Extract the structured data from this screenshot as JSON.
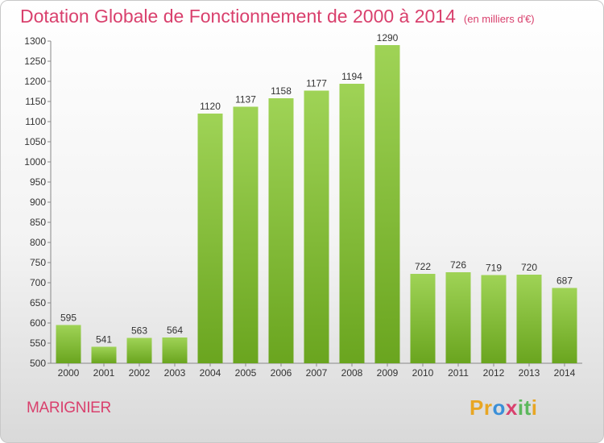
{
  "chart_data": {
    "type": "bar",
    "title": "Dotation Globale de Fonctionnement de 2000 à 2014",
    "unit": "(en milliers d'€)",
    "categories": [
      "2000",
      "2001",
      "2002",
      "2003",
      "2004",
      "2005",
      "2006",
      "2007",
      "2008",
      "2009",
      "2010",
      "2011",
      "2012",
      "2013",
      "2014"
    ],
    "values": [
      595,
      541,
      563,
      564,
      1120,
      1137,
      1158,
      1177,
      1194,
      1290,
      722,
      726,
      719,
      720,
      687
    ],
    "ylim": [
      500,
      1300
    ],
    "ytick_step": 50,
    "grid": false,
    "colors": {
      "bar_light": "#9fd356",
      "bar_dark": "#6aa51f",
      "axis": "#888888"
    }
  },
  "commune": "MARIGNIER",
  "logo": {
    "letters": [
      "P",
      "r",
      "o",
      "x",
      "i",
      "t",
      "i"
    ],
    "colors": [
      "#e8a623",
      "#e8a623",
      "#3a8fd8",
      "#d9406d",
      "#5cb85c",
      "#5cb85c",
      "#e8a623"
    ]
  }
}
